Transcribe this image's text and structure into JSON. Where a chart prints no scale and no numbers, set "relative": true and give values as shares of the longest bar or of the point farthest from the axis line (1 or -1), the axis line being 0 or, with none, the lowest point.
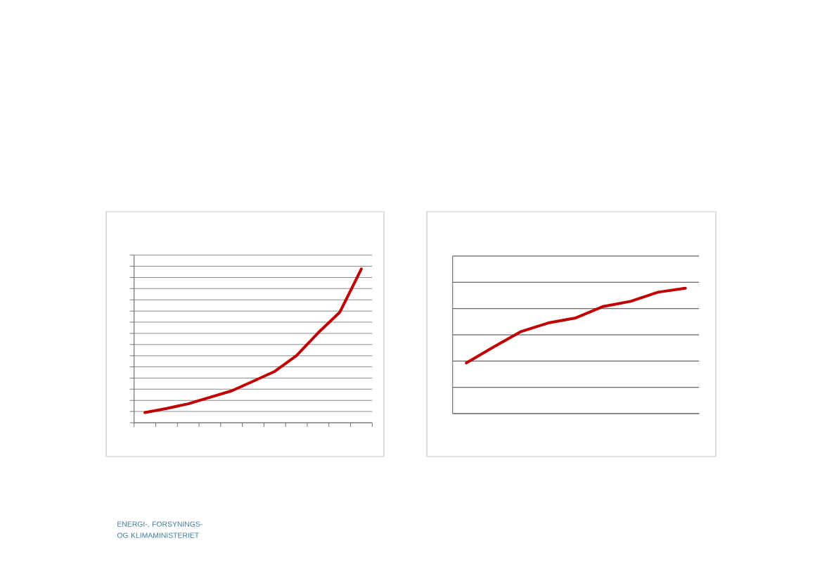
{
  "chart_data": [
    {
      "type": "line",
      "categories": [
        null,
        null,
        null,
        null,
        null,
        null,
        null,
        null,
        null,
        null,
        null
      ],
      "values": [
        0.066,
        0.093,
        0.123,
        0.165,
        0.207,
        0.27,
        0.334,
        0.436,
        0.584,
        0.718,
        1.0
      ],
      "color": "#c00000",
      "relative": true,
      "grid": "y",
      "annotations": [
        "ENERGI-, FORSYNINGS- OG KLIMAMINISTERIET"
      ]
    },
    {
      "type": "line",
      "categories": [
        null,
        null,
        null,
        null,
        null,
        null,
        null,
        null,
        null
      ],
      "values": [
        0.404,
        0.531,
        0.654,
        0.723,
        0.763,
        0.854,
        0.895,
        0.968,
        1.0
      ],
      "color": "#c00000",
      "relative": true,
      "grid": "y"
    }
  ]
}
